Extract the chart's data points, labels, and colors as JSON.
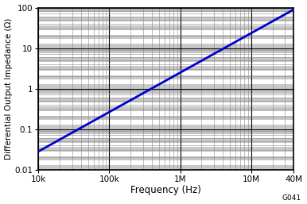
{
  "xmin": 10000,
  "xmax": 40000000,
  "ymin": 0.01,
  "ymax": 100,
  "xlabel": "Frequency (Hz)",
  "ylabel": "Differential Output Impedance (Ω)",
  "line_color": "#0000CC",
  "line_width": 2.0,
  "plot_bg_light": "#FFFFFF",
  "plot_bg_dark": "#C8C8C8",
  "fig_bg_color": "#FFFFFF",
  "grid_major_color": "#000000",
  "grid_minor_color": "#888888",
  "annotation": "G041",
  "x_ticks": [
    10000,
    100000,
    1000000,
    10000000,
    40000000
  ],
  "x_tick_labels": [
    "10k",
    "100k",
    "1M",
    "10M",
    "40M"
  ],
  "y_ticks": [
    0.01,
    0.1,
    1,
    10,
    100
  ],
  "y_tick_labels": [
    "0.01",
    "0.1",
    "1",
    "10",
    "100"
  ],
  "x_data_start": 10000,
  "x_data_end": 40000000,
  "y_data_start": 0.028,
  "y_data_end": 90
}
